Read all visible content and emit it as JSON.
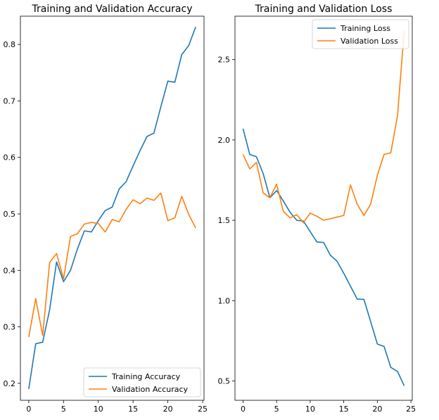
{
  "chart_data": [
    {
      "type": "line",
      "title": "Training and Validation Accuracy",
      "xlabel": "",
      "ylabel": "",
      "xlim": [
        -1.2,
        25.2
      ],
      "ylim": [
        0.17,
        0.85
      ],
      "xticks": [
        0,
        5,
        10,
        15,
        20,
        25
      ],
      "yticks": [
        0.2,
        0.3,
        0.4,
        0.5,
        0.6,
        0.7,
        0.8
      ],
      "ytick_labels": [
        "0.2",
        "0.3",
        "0.4",
        "0.5",
        "0.6",
        "0.7",
        "0.8"
      ],
      "legend_position": "lower-right",
      "x": [
        0,
        1,
        2,
        3,
        4,
        5,
        6,
        7,
        8,
        9,
        10,
        11,
        12,
        13,
        14,
        15,
        16,
        17,
        18,
        19,
        20,
        21,
        22,
        23,
        24
      ],
      "series": [
        {
          "name": "Training Accuracy",
          "color": "#1f77b4",
          "values": [
            0.19,
            0.27,
            0.273,
            0.33,
            0.415,
            0.38,
            0.4,
            0.438,
            0.47,
            0.468,
            0.488,
            0.506,
            0.512,
            0.544,
            0.557,
            0.585,
            0.612,
            0.637,
            0.643,
            0.69,
            0.735,
            0.733,
            0.782,
            0.798,
            0.831
          ]
        },
        {
          "name": "Validation Accuracy",
          "color": "#ff7f0e",
          "values": [
            0.282,
            0.35,
            0.285,
            0.414,
            0.43,
            0.385,
            0.46,
            0.465,
            0.482,
            0.485,
            0.483,
            0.468,
            0.49,
            0.486,
            0.508,
            0.525,
            0.518,
            0.528,
            0.524,
            0.537,
            0.488,
            0.493,
            0.531,
            0.499,
            0.475
          ]
        }
      ]
    },
    {
      "type": "line",
      "title": "Training and Validation Loss",
      "xlabel": "",
      "ylabel": "",
      "xlim": [
        -1.2,
        25.2
      ],
      "ylim": [
        0.38,
        2.77
      ],
      "xticks": [
        0,
        5,
        10,
        15,
        20,
        25
      ],
      "yticks": [
        0.5,
        1.0,
        1.5,
        2.0,
        2.5
      ],
      "ytick_labels": [
        "0.5",
        "1.0",
        "1.5",
        "2.0",
        "2.5"
      ],
      "legend_position": "upper-right",
      "x": [
        0,
        1,
        2,
        3,
        4,
        5,
        6,
        7,
        8,
        9,
        10,
        11,
        12,
        13,
        14,
        15,
        16,
        17,
        18,
        19,
        20,
        21,
        22,
        23,
        24
      ],
      "series": [
        {
          "name": "Training Loss",
          "color": "#1f77b4",
          "values": [
            2.07,
            1.91,
            1.895,
            1.79,
            1.64,
            1.685,
            1.62,
            1.55,
            1.5,
            1.495,
            1.43,
            1.365,
            1.362,
            1.283,
            1.245,
            1.17,
            1.09,
            1.01,
            1.008,
            0.87,
            0.73,
            0.715,
            0.585,
            0.56,
            0.47
          ]
        },
        {
          "name": "Validation Loss",
          "color": "#ff7f0e",
          "values": [
            1.91,
            1.82,
            1.86,
            1.67,
            1.64,
            1.725,
            1.555,
            1.515,
            1.535,
            1.485,
            1.545,
            1.525,
            1.5,
            1.51,
            1.52,
            1.53,
            1.72,
            1.6,
            1.53,
            1.6,
            1.78,
            1.91,
            1.92,
            2.15,
            2.68
          ]
        }
      ]
    }
  ]
}
